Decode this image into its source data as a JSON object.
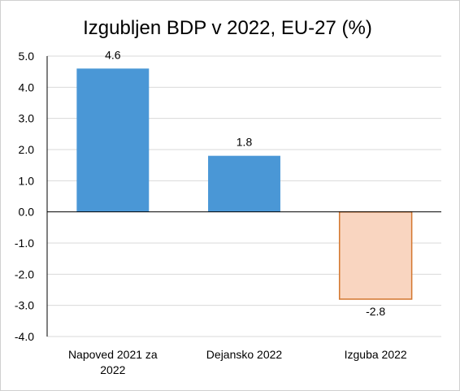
{
  "chart_data": {
    "type": "bar",
    "title": "Izgubljen BDP v 2022, EU-27 (%)",
    "categories": [
      [
        "Napoved 2021 za",
        "2022"
      ],
      [
        "Dejansko 2022"
      ],
      [
        "Izguba 2022"
      ]
    ],
    "values": [
      4.6,
      1.8,
      -2.8
    ],
    "data_labels": [
      "4.6",
      "1.8",
      "-2.8"
    ],
    "y_ticks": [
      "5.0",
      "4.0",
      "3.0",
      "2.0",
      "1.0",
      "0.0",
      "-1.0",
      "-2.0",
      "-3.0",
      "-4.0"
    ],
    "ylim": [
      -4,
      5
    ],
    "grid": true,
    "legend": false,
    "colors": {
      "positive_fill": "#4a97d6",
      "negative_fill": "#f9d5c0",
      "negative_stroke": "#d3762e"
    }
  }
}
